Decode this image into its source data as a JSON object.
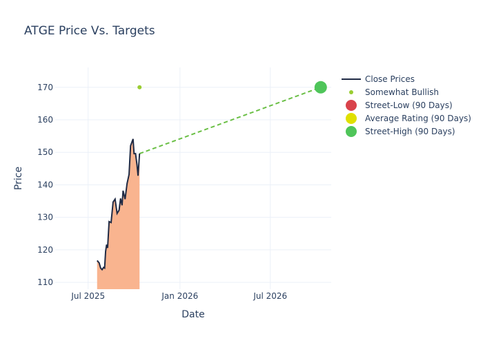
{
  "chart_data": {
    "type": "line",
    "title": "ATGE Price Vs. Targets",
    "xlabel": "Date",
    "ylabel": "Price",
    "xlim": [
      "2025-04-26",
      "2026-10-31"
    ],
    "ylim": [
      107.9,
      176.1
    ],
    "grid": true,
    "legend_position": "top-right",
    "x_ticks": [
      {
        "date": "2025-07-01",
        "label": "Jul 2025"
      },
      {
        "date": "2026-01-01",
        "label": "Jan 2026"
      },
      {
        "date": "2026-07-01",
        "label": "Jul 2026"
      }
    ],
    "y_ticks": [
      110,
      120,
      130,
      140,
      150,
      160,
      170
    ],
    "series": [
      {
        "name": "Close Prices",
        "color": "#1f2a44",
        "fill": "#f9b48f",
        "x": [
          "2025-07-19",
          "2025-07-23",
          "2025-07-26",
          "2025-07-29",
          "2025-08-01",
          "2025-08-03",
          "2025-08-05",
          "2025-08-07",
          "2025-08-09",
          "2025-08-12",
          "2025-08-16",
          "2025-08-20",
          "2025-08-24",
          "2025-08-28",
          "2025-09-01",
          "2025-09-04",
          "2025-09-07",
          "2025-09-09",
          "2025-09-13",
          "2025-09-17",
          "2025-09-21",
          "2025-09-24",
          "2025-09-29",
          "2025-10-01",
          "2025-10-04",
          "2025-10-07",
          "2025-10-09",
          "2025-10-12"
        ],
        "y": [
          116.7,
          116.0,
          114.4,
          113.9,
          114.6,
          114.4,
          119.5,
          121.6,
          120.6,
          128.7,
          128.4,
          134.7,
          135.6,
          131.2,
          132.2,
          135.8,
          133.7,
          138.2,
          135.6,
          140.4,
          143.2,
          152.0,
          154.1,
          149.6,
          149.6,
          146.0,
          142.8,
          149.6
        ]
      },
      {
        "name": "Somewhat Bullish",
        "color": "#9acd32",
        "x": [
          "2025-10-12"
        ],
        "y": [
          170
        ]
      },
      {
        "name": "Street-Low (90 Days)",
        "color": "#d9434b",
        "x": [],
        "y": []
      },
      {
        "name": "Average Rating (90 Days)",
        "color": "#e0e000",
        "x": [],
        "y": []
      },
      {
        "name": "Street-High (90 Days)",
        "color": "#4fc55a",
        "x": [
          "2026-10-10"
        ],
        "y": [
          170
        ]
      }
    ],
    "target_line": {
      "color": "#6abf45",
      "from": {
        "x": "2025-10-12",
        "y": 149.6
      },
      "to": {
        "x": "2026-10-10",
        "y": 170
      }
    }
  }
}
